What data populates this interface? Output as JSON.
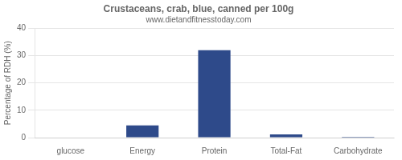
{
  "chart_data": {
    "type": "bar",
    "title": "Crustaceans, crab, blue, canned per 100g",
    "subtitle": "www.dietandfitnesstoday.com",
    "categories": [
      "glucose",
      "Energy",
      "Protein",
      "Total-Fat",
      "Carbohydrate"
    ],
    "values": [
      0,
      4.5,
      32,
      1.2,
      0.3
    ],
    "color": "#2e4a8a",
    "ylabel": "Percentage of RDH (%)",
    "ylim": [
      0,
      40
    ],
    "yticks": [
      0,
      10,
      20,
      30,
      40
    ],
    "grid": true
  }
}
